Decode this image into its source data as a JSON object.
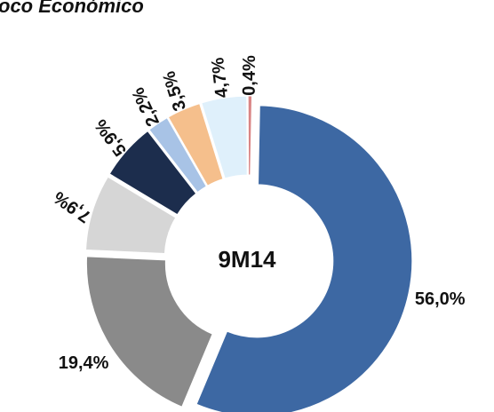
{
  "chart_data": {
    "type": "donut",
    "title": "oco Económico",
    "center_label": "9M14",
    "series": [
      {
        "name": null,
        "values": [
          56.0,
          19.4,
          7.9,
          5.9,
          2.2,
          3.5,
          4.7,
          0.4
        ],
        "value_labels": [
          "56,0%",
          "19,4%",
          "7,9%",
          "5,9%",
          "2,2%",
          "3,5%",
          "4,7%",
          "0,4%"
        ],
        "colors": [
          "#3d68a3",
          "#8a8a8a",
          "#d6d6d6",
          "#1c2d4d",
          "#a8c3e6",
          "#f5bf8c",
          "#dff0fb",
          "#d98585"
        ]
      }
    ]
  }
}
